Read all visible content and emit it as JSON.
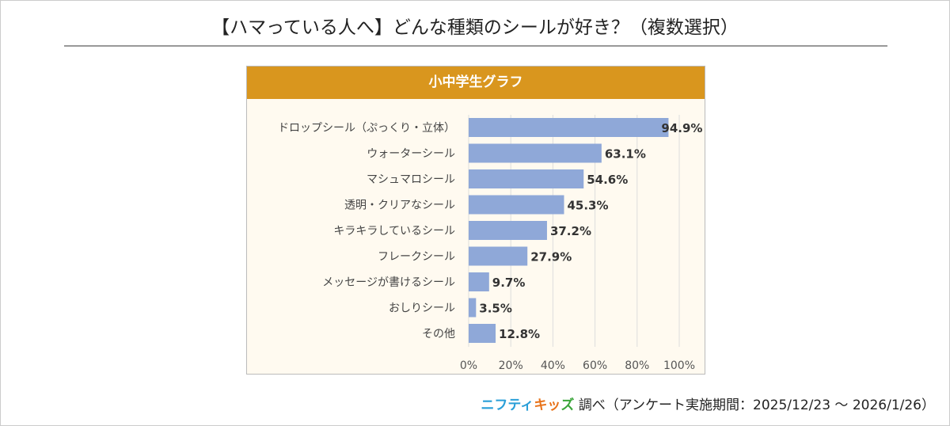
{
  "title": "【ハマっている人へ】どんな種類のシールが好き？（複数選択）",
  "panel_title": "小中学生グラフ",
  "footer": {
    "logo_a": "ニフティ",
    "logo_b": "キッ",
    "logo_c": "ズ",
    "text": "調べ（アンケート実施期間：2025/12/23 〜 2026/1/26）"
  },
  "colors": {
    "bar": "#8fa8d8",
    "header": "#d9961e"
  },
  "chart_data": {
    "type": "bar",
    "orientation": "horizontal",
    "title": "小中学生グラフ",
    "categories": [
      "ドロップシール（ぷっくり・立体）",
      "ウォーターシール",
      "マシュマロシール",
      "透明・クリアなシール",
      "キラキラしているシール",
      "フレークシール",
      "メッセージが書けるシール",
      "おしりシール",
      "その他"
    ],
    "values": [
      94.9,
      63.1,
      54.6,
      45.3,
      37.2,
      27.9,
      9.7,
      3.5,
      12.8
    ],
    "value_labels": [
      "94.9%",
      "63.1%",
      "54.6%",
      "45.3%",
      "37.2%",
      "27.9%",
      "9.7%",
      "3.5%",
      "12.8%"
    ],
    "xlim": [
      0,
      100
    ],
    "xticks": [
      "0%",
      "20%",
      "40%",
      "60%",
      "80%",
      "100%"
    ],
    "grid": true,
    "xlabel": "",
    "ylabel": ""
  }
}
